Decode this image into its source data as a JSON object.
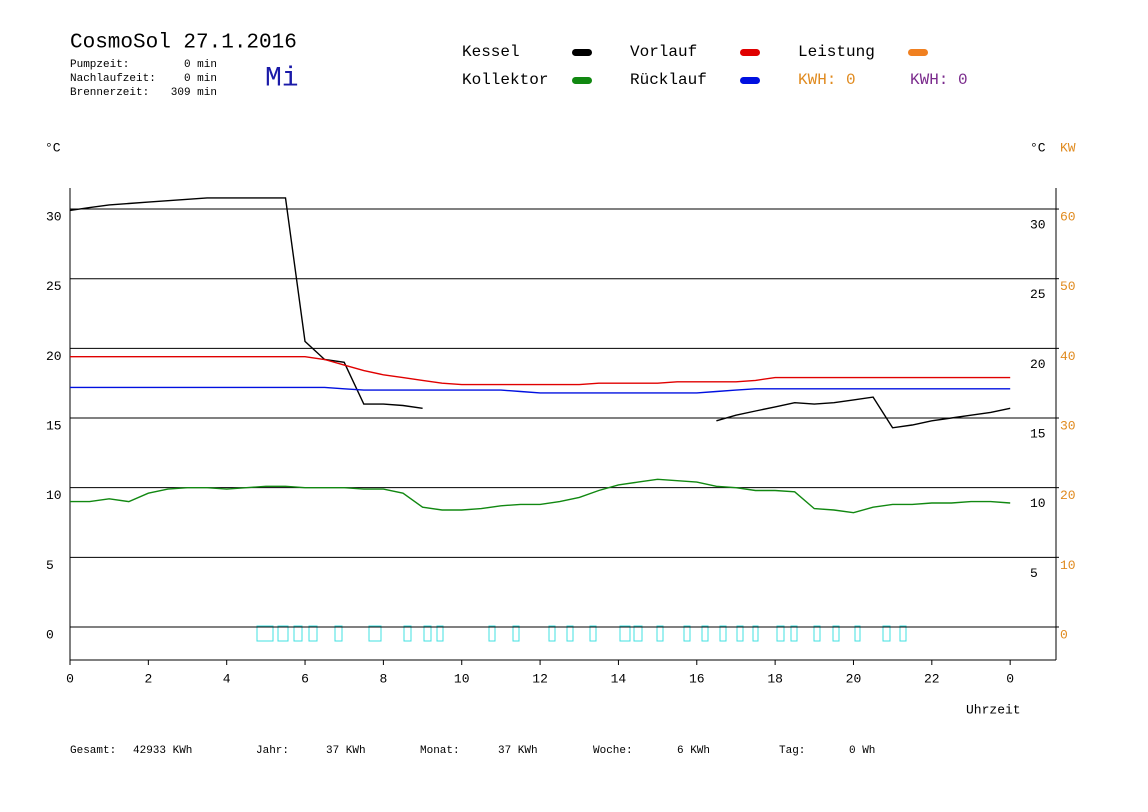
{
  "chart_data": {
    "type": "line",
    "title": "CosmoSol 27.1.2016",
    "day": "Mi",
    "info": [
      {
        "label": "Pumpzeit:",
        "value": "0 min"
      },
      {
        "label": "Nachlaufzeit:",
        "value": "0 min"
      },
      {
        "label": "Brennerzeit:",
        "value": "309 min"
      }
    ],
    "kwh_labels": [
      {
        "text": "KWH: 0",
        "color": "#e08a1e"
      },
      {
        "text": "KWH: 0",
        "color": "#7a2a8c"
      }
    ],
    "y_unit": "°C",
    "y2_units": [
      "°C",
      "KW"
    ],
    "x_label": "Uhrzeit",
    "x": [
      0,
      0.5,
      1,
      1.5,
      2,
      2.5,
      3,
      3.5,
      4,
      4.5,
      5,
      5.5,
      6,
      6.5,
      7,
      7.5,
      8,
      8.5,
      9,
      9.5,
      10,
      10.5,
      11,
      11.5,
      12,
      12.5,
      13,
      13.5,
      14,
      14.5,
      15,
      15.5,
      16,
      16.5,
      17,
      17.5,
      18,
      18.5,
      19,
      19.5,
      20,
      20.5,
      21,
      21.5,
      22,
      22.5,
      23,
      23.5,
      24
    ],
    "xlim": [
      0,
      25.17
    ],
    "xticks": [
      0,
      2,
      4,
      6,
      8,
      10,
      12,
      14,
      16,
      18,
      20,
      22,
      {
        "value": 24,
        "label": "0"
      }
    ],
    "ylim": [
      -2.37,
      31.51
    ],
    "yticks": [
      0,
      5,
      10,
      15,
      20,
      25,
      30
    ],
    "y2lim": [
      -4.74,
      63.02
    ],
    "y2ticks": [
      0,
      10,
      20,
      30,
      40,
      50,
      60
    ],
    "grid": true,
    "series": [
      {
        "name": "Kessel",
        "color": "#000000",
        "values": [
          29.9,
          30.1,
          30.3,
          30.4,
          30.5,
          30.6,
          30.7,
          30.8,
          30.8,
          30.8,
          30.8,
          30.8,
          20.5,
          19.2,
          19.0,
          16.0,
          16.0,
          15.9,
          15.7,
          null,
          null,
          null,
          null,
          null,
          null,
          null,
          null,
          null,
          null,
          null,
          null,
          null,
          null,
          14.8,
          15.2,
          15.5,
          15.8,
          16.1,
          16.0,
          16.1,
          16.3,
          16.5,
          14.3,
          14.5,
          14.8,
          15.0,
          15.2,
          15.4,
          15.7
        ]
      },
      {
        "name": "Vorlauf",
        "color": "#e00000",
        "values": [
          19.4,
          19.4,
          19.4,
          19.4,
          19.4,
          19.4,
          19.4,
          19.4,
          19.4,
          19.4,
          19.4,
          19.4,
          19.4,
          19.2,
          18.8,
          18.4,
          18.1,
          17.9,
          17.7,
          17.5,
          17.4,
          17.4,
          17.4,
          17.4,
          17.4,
          17.4,
          17.4,
          17.5,
          17.5,
          17.5,
          17.5,
          17.6,
          17.6,
          17.6,
          17.6,
          17.7,
          17.9,
          17.9,
          17.9,
          17.9,
          17.9,
          17.9,
          17.9,
          17.9,
          17.9,
          17.9,
          17.9,
          17.9,
          17.9
        ]
      },
      {
        "name": "Leistung",
        "color": "#f08020",
        "axis": "y2",
        "values": [
          null,
          null,
          null,
          null,
          null,
          null,
          null,
          null,
          null,
          null,
          null,
          null,
          null,
          null,
          null,
          null,
          null,
          null,
          null,
          null,
          null,
          null,
          null,
          null,
          null,
          null,
          null,
          null,
          null,
          null,
          null,
          null,
          null,
          null,
          null,
          null,
          null,
          null,
          null,
          null,
          null,
          null,
          null,
          null,
          null,
          null,
          null,
          null,
          null
        ]
      },
      {
        "name": "Kollektor",
        "color": "#118811",
        "values": [
          9.0,
          9.0,
          9.2,
          9.0,
          9.6,
          9.9,
          10.0,
          10.0,
          9.9,
          10.0,
          10.1,
          10.1,
          10.0,
          10.0,
          10.0,
          9.9,
          9.9,
          9.6,
          8.6,
          8.4,
          8.4,
          8.5,
          8.7,
          8.8,
          8.8,
          9.0,
          9.3,
          9.8,
          10.2,
          10.4,
          10.6,
          10.5,
          10.4,
          10.1,
          10.0,
          9.8,
          9.8,
          9.7,
          8.5,
          8.4,
          8.2,
          8.6,
          8.8,
          8.8,
          8.9,
          8.9,
          9.0,
          9.0,
          8.9
        ]
      },
      {
        "name": "Rücklauf",
        "color": "#0010e0",
        "values": [
          17.2,
          17.2,
          17.2,
          17.2,
          17.2,
          17.2,
          17.2,
          17.2,
          17.2,
          17.2,
          17.2,
          17.2,
          17.2,
          17.2,
          17.1,
          17.0,
          17.0,
          17.0,
          17.0,
          17.0,
          17.0,
          17.0,
          17.0,
          16.9,
          16.8,
          16.8,
          16.8,
          16.8,
          16.8,
          16.8,
          16.8,
          16.8,
          16.8,
          16.9,
          17.0,
          17.1,
          17.1,
          17.1,
          17.1,
          17.1,
          17.1,
          17.1,
          17.1,
          17.1,
          17.1,
          17.1,
          17.1,
          17.1,
          17.1
        ]
      }
    ]
  },
  "footer": [
    {
      "label": "Gesamt:",
      "value": "42933 KWh"
    },
    {
      "label": "Jahr:",
      "value": "37 KWh"
    },
    {
      "label": "Monat:",
      "value": "37 KWh"
    },
    {
      "label": "Woche:",
      "value": "6 KWh"
    },
    {
      "label": "Tag:",
      "value": "0 Wh"
    }
  ]
}
